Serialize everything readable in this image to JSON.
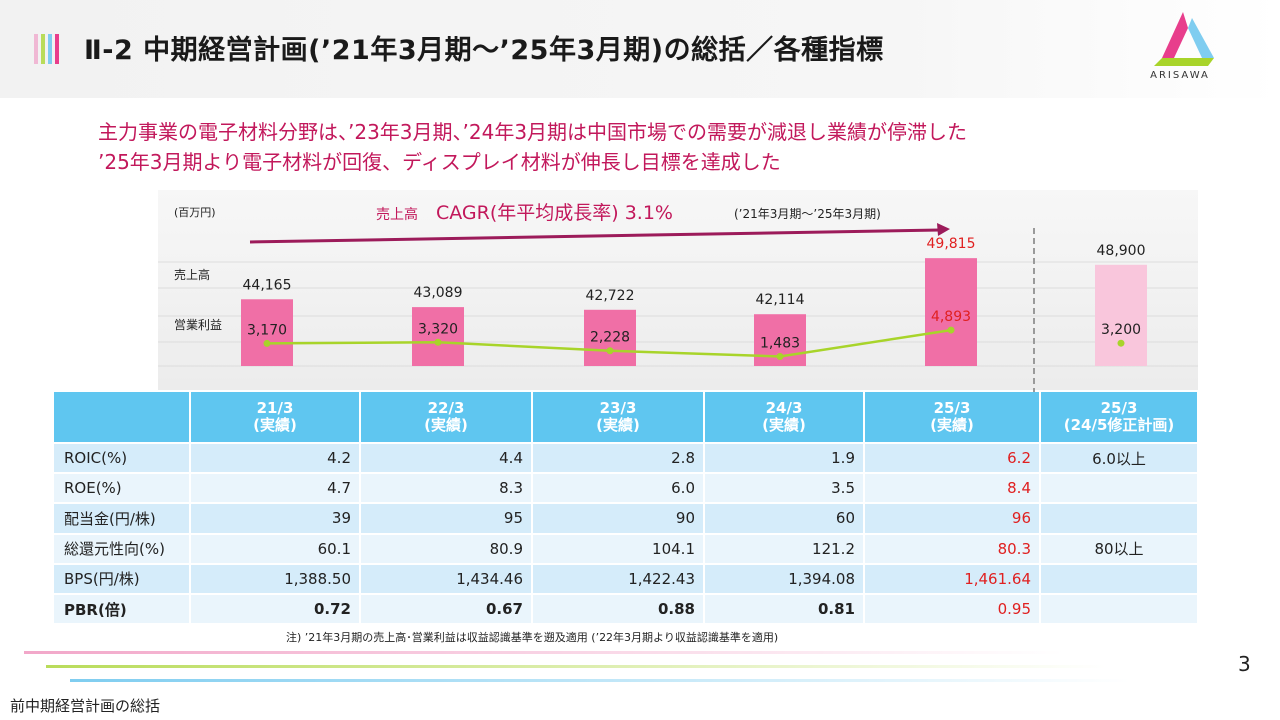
{
  "header": {
    "title": "Ⅱ-2  中期経営計画(’21年3月期～’25年3月期)の総括／各種指標",
    "logo_text": "ARISAWA",
    "accent_colors": [
      "#f0b8d4",
      "#b9dc5a",
      "#7fcdf0",
      "#e83e8c"
    ]
  },
  "subtitle": {
    "line1": "主力事業の電子材料分野は、’23年3月期、’24年3月期は中国市場での需要が減退し業績が停滞した",
    "line2": "’25年3月期より電子材料が回復、ディスプレイ材料が伸長し目標を達成した"
  },
  "chart_data": {
    "type": "bar",
    "unit_label": "(百万円)",
    "row_labels": [
      "売上高",
      "営業利益"
    ],
    "categories": [
      "21/3",
      "22/3",
      "23/3",
      "24/3",
      "25/3",
      "25/3 (24/5修正計画)"
    ],
    "series": [
      {
        "name": "売上高",
        "values": [
          44165,
          43089,
          42722,
          42114,
          49815,
          48900
        ],
        "labels": [
          "44,165",
          "43,089",
          "42,722",
          "42,114",
          "49,815",
          "48,900"
        ]
      },
      {
        "name": "営業利益",
        "values": [
          3170,
          3320,
          2228,
          1483,
          4893,
          3200
        ],
        "labels": [
          "3,170",
          "3,320",
          "2,228",
          "1,483",
          "4,893",
          "3,200"
        ]
      }
    ],
    "cagr": {
      "prefix": "売上高",
      "label": "CAGR(年平均成長率) 3.1%",
      "period": "(’21年3月期～’25年3月期)"
    },
    "colors": {
      "bar": "#f06fa6",
      "bar_plan": "#f9c6dc",
      "line": "#a8d42a",
      "highlight": "#e02020",
      "arrow": "#9c1b5a"
    }
  },
  "table": {
    "headers": [
      {
        "line1": "",
        "line2": ""
      },
      {
        "line1": "21/3",
        "line2": "(実績)"
      },
      {
        "line1": "22/3",
        "line2": "(実績)"
      },
      {
        "line1": "23/3",
        "line2": "(実績)"
      },
      {
        "line1": "24/3",
        "line2": "(実績)"
      },
      {
        "line1": "25/3",
        "line2": "(実績)"
      },
      {
        "line1": "25/3",
        "line2": "(24/5修正計画)"
      }
    ],
    "rows": [
      {
        "label": "ROIC(%)",
        "values": [
          "4.2",
          "4.4",
          "2.8",
          "1.9",
          "6.2"
        ],
        "plan": "6.0以上"
      },
      {
        "label": "ROE(%)",
        "values": [
          "4.7",
          "8.3",
          "6.0",
          "3.5",
          "8.4"
        ],
        "plan": ""
      },
      {
        "label": "配当金(円/株)",
        "values": [
          "39",
          "95",
          "90",
          "60",
          "96"
        ],
        "plan": ""
      },
      {
        "label": "総還元性向(%)",
        "values": [
          "60.1",
          "80.9",
          "104.1",
          "121.2",
          "80.3"
        ],
        "plan": "80以上"
      },
      {
        "label": "BPS(円/株)",
        "values": [
          "1,388.50",
          "1,434.46",
          "1,422.43",
          "1,394.08",
          "1,461.64"
        ],
        "plan": ""
      },
      {
        "label": "PBR(倍)",
        "values": [
          "0.72",
          "0.67",
          "0.88",
          "0.81",
          "0.95"
        ],
        "plan": ""
      }
    ]
  },
  "note": "注) ’21年3月期の売上高･営業利益は収益認識基準を遡及適用 (’22年3月期より収益認識基準を適用)",
  "page_number": "3",
  "footer_text": "前中期経営計画の総括"
}
